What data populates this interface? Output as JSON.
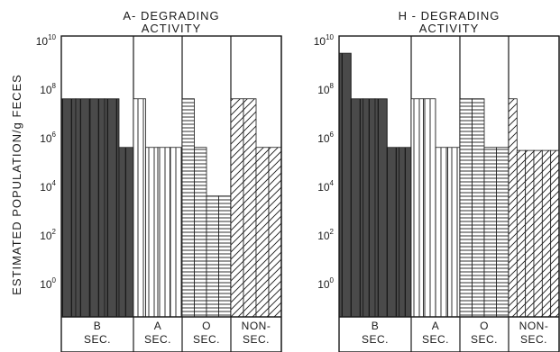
{
  "ylabel": "ESTIMATED POPULATION/g FECES",
  "y_scale": "log10",
  "ylim": [
    1,
    10000000000
  ],
  "y_tick_labels": [
    {
      "base": "10",
      "exp": "10"
    },
    {
      "base": "10",
      "exp": "8"
    },
    {
      "base": "10",
      "exp": "6"
    },
    {
      "base": "10",
      "exp": "4"
    },
    {
      "base": "10",
      "exp": "2"
    },
    {
      "base": "10",
      "exp": "0"
    }
  ],
  "groups": [
    {
      "key": "b",
      "label_top": "B",
      "label_bottom": "SEC.",
      "fill": "dark"
    },
    {
      "key": "a",
      "label_top": "A",
      "label_bottom": "SEC.",
      "fill": "vertical-lines"
    },
    {
      "key": "o",
      "label_top": "O",
      "label_bottom": "SEC.",
      "fill": "horizontal-lines"
    },
    {
      "key": "non",
      "label_top": "NON-",
      "label_bottom": "SEC.",
      "fill": "diagonal-lines"
    }
  ],
  "colors": {
    "ink": "#1a1a1a",
    "dark_fill": "#4a4a4a",
    "paper": "#ffffff"
  },
  "chart_data": [
    {
      "type": "bar",
      "title": "A-DEGRADING ACTIVITY",
      "title_lines": [
        "A- DEGRADING",
        "ACTIVITY"
      ],
      "ylabel": "ESTIMATED POPULATION/g FECES",
      "y_scale": "log10",
      "ylim": [
        1,
        10000000000
      ],
      "groups": [
        "B SEC.",
        "A SEC.",
        "O SEC.",
        "NON-SEC."
      ],
      "series_per_group": [
        [
          40000000,
          40000000,
          40000000,
          40000000,
          400000
        ],
        [
          40000000,
          400000,
          400000,
          400000
        ],
        [
          40000000,
          400000,
          4000,
          4000
        ],
        [
          40000000,
          40000000,
          400000,
          400000
        ]
      ]
    },
    {
      "type": "bar",
      "title": "H-DEGRADING ACTIVITY",
      "title_lines": [
        "H - DEGRADING",
        "ACTIVITY"
      ],
      "ylabel": "ESTIMATED POPULATION/g FECES",
      "y_scale": "log10",
      "ylim": [
        1,
        10000000000
      ],
      "groups": [
        "B SEC.",
        "A SEC.",
        "O SEC.",
        "NON-SEC."
      ],
      "series_per_group": [
        [
          3000000000,
          40000000,
          40000000,
          40000000,
          400000,
          400000
        ],
        [
          40000000,
          40000000,
          400000,
          400000
        ],
        [
          40000000,
          40000000,
          400000,
          400000
        ],
        [
          40000000,
          300000,
          300000,
          300000,
          300000,
          300000
        ]
      ]
    }
  ]
}
